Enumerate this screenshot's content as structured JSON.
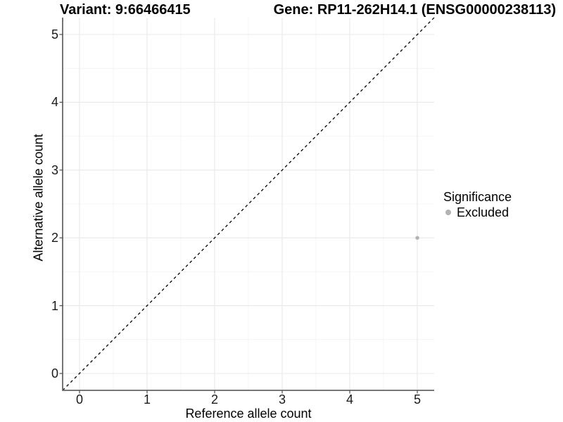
{
  "chart_data": {
    "type": "scatter",
    "title_left": "Variant: 9:66466415",
    "title_right": "Gene: RP11-262H14.1 (ENSG00000238113)",
    "xlabel": "Reference allele count",
    "ylabel": "Alternative allele count",
    "x_ticks": [
      0,
      1,
      2,
      3,
      4,
      5
    ],
    "y_ticks": [
      0,
      1,
      2,
      3,
      4,
      5
    ],
    "xlim": [
      -0.25,
      5.25
    ],
    "ylim": [
      -0.25,
      5.25
    ],
    "grid": "major+minor",
    "points": [
      {
        "x": 5,
        "y": 2,
        "series": "Excluded"
      }
    ],
    "reference_line": {
      "kind": "identity y=x",
      "style": "dashed",
      "color": "#000000"
    },
    "legend": {
      "title": "Significance",
      "position": "right",
      "items": [
        {
          "label": "Excluded",
          "color": "#b3b3b3",
          "marker": "circle"
        }
      ]
    },
    "colors": {
      "background": "#ffffff",
      "grid_major": "#e8e8e8",
      "grid_minor": "#f4f4f4",
      "axis_line": "#666666",
      "tick_mark": "#4d4d4d",
      "point": "#b3b3b3",
      "text": "#000000"
    }
  }
}
